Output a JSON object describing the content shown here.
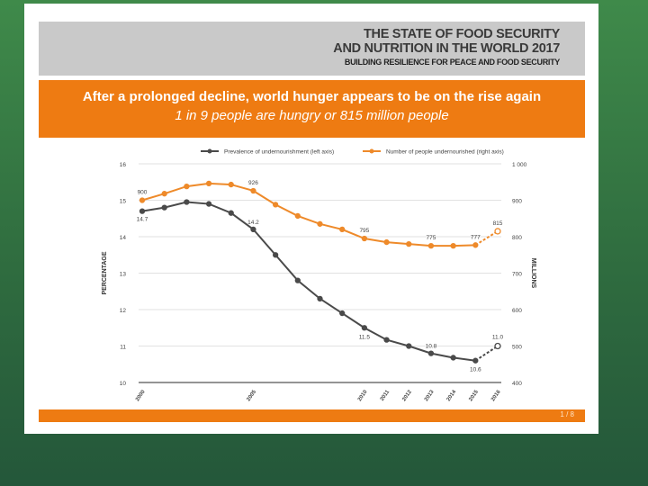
{
  "header": {
    "line1": "THE STATE OF FOOD SECURITY",
    "line2": "AND NUTRITION IN THE WORLD 2017",
    "line3": "BUILDING RESILIENCE FOR PEACE AND FOOD SECURITY"
  },
  "headline": {
    "title": "After a prolonged decline, world hunger appears to be on the rise again",
    "subtitle": "1 in 9 people are hungry or 815 million people"
  },
  "chart_data": {
    "type": "line",
    "x": [
      "2000",
      "2001",
      "2002",
      "2003",
      "2004",
      "2005",
      "2006",
      "2007",
      "2008",
      "2009",
      "2010",
      "2011",
      "2012",
      "2013",
      "2014",
      "2015",
      "2016"
    ],
    "x_tick_labels": [
      "2000",
      "2005",
      "2010",
      "2011",
      "2012",
      "2013",
      "2014",
      "2015",
      "2016"
    ],
    "series": [
      {
        "name": "Prevalence of undernourishment (left axis)",
        "axis": "left",
        "color": "#4a4a4a",
        "values": [
          14.7,
          14.8,
          14.95,
          14.9,
          14.65,
          14.2,
          13.5,
          12.8,
          12.3,
          11.9,
          11.5,
          11.17,
          11.0,
          10.8,
          10.68,
          10.6,
          11.0
        ],
        "projected_last": true,
        "data_labels": {
          "0": "14.7",
          "5": "14.2",
          "10": "11.5",
          "13": "10.8",
          "15": "10.6",
          "16": "11.0"
        }
      },
      {
        "name": "Number of people undernourished (right axis)",
        "axis": "right",
        "color": "#ee8a2a",
        "values": [
          900,
          918,
          938,
          946,
          943,
          926,
          888,
          857,
          835,
          820,
          795,
          785,
          780,
          775,
          775,
          777,
          815
        ],
        "projected_last": true,
        "data_labels": {
          "0": "900",
          "5": "926",
          "10": "795",
          "13": "775",
          "15": "777",
          "16": "815"
        }
      }
    ],
    "left_axis": {
      "label": "PERCENTAGE",
      "range": [
        10,
        16
      ],
      "ticks": [
        "10",
        "11",
        "12",
        "13",
        "14",
        "15",
        "16"
      ]
    },
    "right_axis": {
      "label": "MILLIONS",
      "range": [
        400,
        1000
      ],
      "ticks": [
        "400",
        "500",
        "600",
        "700",
        "800",
        "900",
        "1 000"
      ]
    },
    "grid": true,
    "legend_position": "top"
  },
  "footer": {
    "page": "1 / 8"
  }
}
